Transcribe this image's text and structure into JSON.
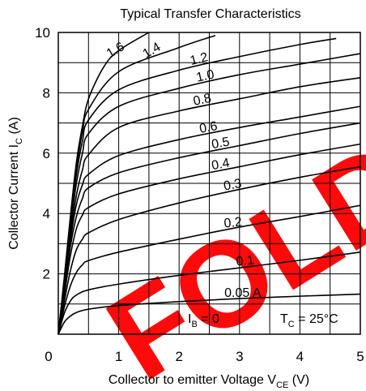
{
  "chart_data": {
    "type": "line",
    "title": "Typical Transfer Characteristics",
    "xlabel": {
      "main": "Collector to emitter Voltage  V",
      "sub": "CE",
      "unit": "  (V)"
    },
    "ylabel": {
      "main": "Collector Current  I",
      "sub": "C",
      "unit": "  (A)"
    },
    "xlim": [
      0,
      5
    ],
    "ylim": [
      0,
      10
    ],
    "x_ticks": [
      "0",
      "1",
      "2",
      "3",
      "4",
      "5"
    ],
    "y_ticks": [
      "2",
      "4",
      "6",
      "8",
      "10"
    ],
    "grid": true,
    "watermark": {
      "text": "FOLD",
      "color": "#ff0a0a"
    },
    "annotations": {
      "ib_zero": {
        "main": "I",
        "sub": "B",
        "rest": " = 0"
      },
      "tc": {
        "main": "T",
        "sub": "C",
        "rest": " = 25°C"
      }
    },
    "series": [
      {
        "name": "0.05 A",
        "values": [
          [
            0,
            0
          ],
          [
            0.1,
            0.4
          ],
          [
            0.2,
            0.6
          ],
          [
            0.3,
            0.72
          ],
          [
            0.5,
            0.83
          ],
          [
            1,
            0.95
          ],
          [
            2,
            1.08
          ],
          [
            3,
            1.18
          ],
          [
            4,
            1.26
          ],
          [
            5,
            1.33
          ]
        ]
      },
      {
        "name": "0.1",
        "values": [
          [
            0,
            0
          ],
          [
            0.1,
            0.7
          ],
          [
            0.2,
            1.1
          ],
          [
            0.3,
            1.3
          ],
          [
            0.5,
            1.47
          ],
          [
            1,
            1.66
          ],
          [
            2,
            1.95
          ],
          [
            3,
            2.2
          ],
          [
            4,
            2.45
          ],
          [
            5,
            2.72
          ]
        ]
      },
      {
        "name": "0.2",
        "values": [
          [
            0,
            0
          ],
          [
            0.1,
            0.9
          ],
          [
            0.2,
            1.6
          ],
          [
            0.3,
            2.05
          ],
          [
            0.4,
            2.3
          ],
          [
            0.5,
            2.44
          ],
          [
            1,
            2.72
          ],
          [
            2,
            3.15
          ],
          [
            3,
            3.55
          ],
          [
            4,
            3.9
          ],
          [
            5,
            4.27
          ]
        ]
      },
      {
        "name": "0.3",
        "values": [
          [
            0,
            0
          ],
          [
            0.1,
            1.1
          ],
          [
            0.2,
            2.1
          ],
          [
            0.3,
            2.8
          ],
          [
            0.4,
            3.15
          ],
          [
            0.5,
            3.36
          ],
          [
            1,
            3.8
          ],
          [
            2,
            4.35
          ],
          [
            3,
            4.8
          ],
          [
            4,
            5.2
          ],
          [
            5,
            5.55
          ]
        ]
      },
      {
        "name": "0.4",
        "values": [
          [
            0,
            0
          ],
          [
            0.1,
            1.3
          ],
          [
            0.2,
            2.6
          ],
          [
            0.3,
            3.5
          ],
          [
            0.4,
            3.95
          ],
          [
            0.5,
            4.2
          ],
          [
            1,
            4.65
          ],
          [
            2,
            5.15
          ],
          [
            3,
            5.55
          ],
          [
            4,
            5.95
          ],
          [
            5,
            6.3
          ]
        ]
      },
      {
        "name": "0.5",
        "values": [
          [
            0,
            0
          ],
          [
            0.1,
            1.4
          ],
          [
            0.2,
            2.9
          ],
          [
            0.3,
            3.9
          ],
          [
            0.4,
            4.5
          ],
          [
            0.5,
            4.85
          ],
          [
            1,
            5.35
          ],
          [
            2,
            5.85
          ],
          [
            3,
            6.25
          ],
          [
            4,
            6.65
          ],
          [
            5,
            7.0
          ]
        ]
      },
      {
        "name": "0.6",
        "values": [
          [
            0,
            0
          ],
          [
            0.1,
            1.5
          ],
          [
            0.2,
            3.1
          ],
          [
            0.3,
            4.3
          ],
          [
            0.4,
            4.95
          ],
          [
            0.5,
            5.3
          ],
          [
            1,
            5.92
          ],
          [
            2,
            6.45
          ],
          [
            3,
            6.85
          ],
          [
            4,
            7.2
          ],
          [
            5,
            7.55
          ]
        ]
      },
      {
        "name": "0.8",
        "values": [
          [
            0,
            0
          ],
          [
            0.1,
            1.6
          ],
          [
            0.2,
            3.3
          ],
          [
            0.3,
            4.6
          ],
          [
            0.4,
            5.45
          ],
          [
            0.5,
            5.95
          ],
          [
            1,
            6.85
          ],
          [
            2,
            7.4
          ],
          [
            3,
            7.8
          ],
          [
            4,
            8.2
          ],
          [
            5,
            8.5
          ]
        ]
      },
      {
        "name": "1.0",
        "values": [
          [
            0,
            0
          ],
          [
            0.1,
            1.7
          ],
          [
            0.2,
            3.5
          ],
          [
            0.3,
            5.0
          ],
          [
            0.4,
            6.0
          ],
          [
            0.5,
            6.65
          ],
          [
            1,
            7.55
          ],
          [
            2,
            8.15
          ],
          [
            3,
            8.6
          ],
          [
            4,
            8.95
          ],
          [
            5,
            9.3
          ]
        ]
      },
      {
        "name": "1.2",
        "values": [
          [
            0,
            0
          ],
          [
            0.1,
            1.8
          ],
          [
            0.2,
            3.7
          ],
          [
            0.3,
            5.3
          ],
          [
            0.4,
            6.4
          ],
          [
            0.5,
            7.1
          ],
          [
            1,
            8.1
          ],
          [
            2,
            8.75
          ],
          [
            3,
            9.2
          ],
          [
            4,
            9.6
          ],
          [
            4.6,
            9.8
          ]
        ]
      },
      {
        "name": "1.4",
        "values": [
          [
            0,
            0
          ],
          [
            0.1,
            1.85
          ],
          [
            0.2,
            3.8
          ],
          [
            0.3,
            5.5
          ],
          [
            0.4,
            6.7
          ],
          [
            0.5,
            7.45
          ],
          [
            1,
            8.7
          ],
          [
            2,
            9.5
          ],
          [
            2.6,
            9.9
          ]
        ]
      },
      {
        "name": "1.6",
        "values": [
          [
            0,
            0
          ],
          [
            0.1,
            1.9
          ],
          [
            0.2,
            3.9
          ],
          [
            0.3,
            5.7
          ],
          [
            0.4,
            6.9
          ],
          [
            0.5,
            7.8
          ],
          [
            0.75,
            8.85
          ],
          [
            1,
            9.4
          ],
          [
            1.5,
            10
          ]
        ]
      }
    ]
  }
}
